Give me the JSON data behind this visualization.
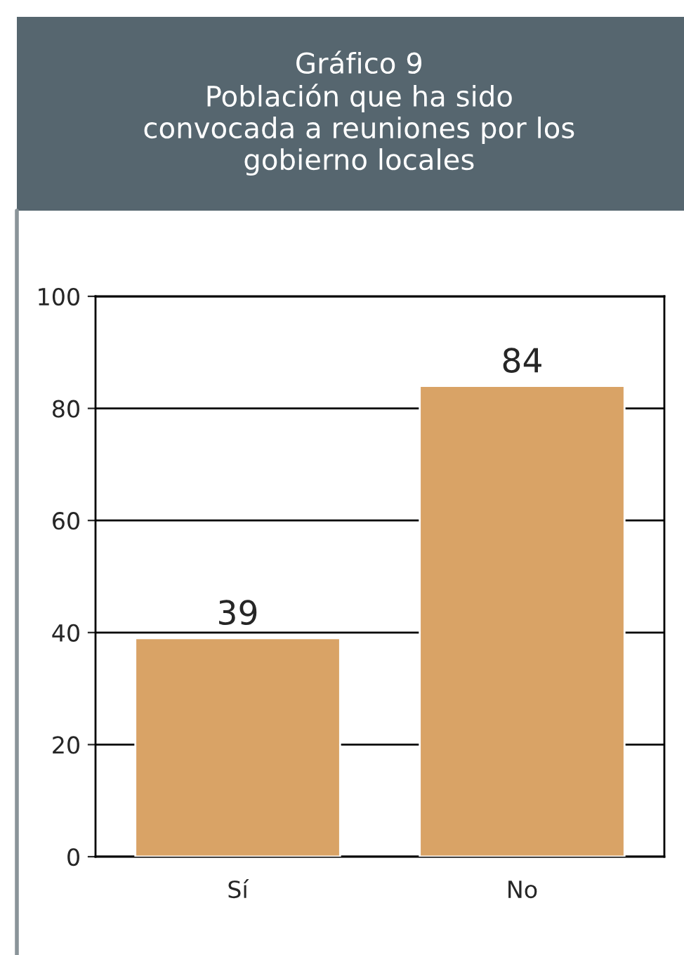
{
  "chart_data": {
    "type": "bar",
    "title": "Gráfico 9\nPoblación que ha sido\nconvocada a reuniones por los\ngobierno locales",
    "categories": [
      "Sí",
      "No"
    ],
    "values": [
      39,
      84
    ],
    "color": "#d9a366",
    "ylim": [
      0,
      100
    ],
    "yticks": [
      0,
      20,
      40,
      60,
      80,
      100
    ],
    "grid": "y",
    "data_labels": true
  }
}
